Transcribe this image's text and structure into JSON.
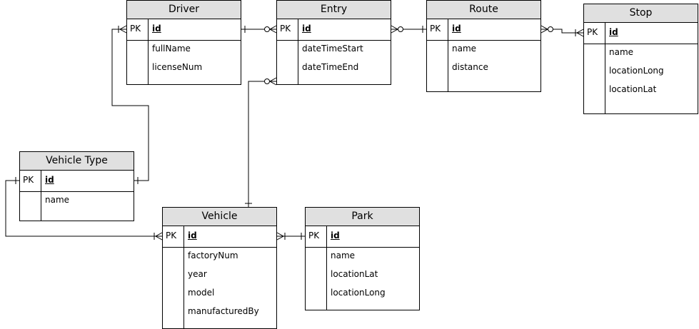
{
  "entities": [
    {
      "name": "Driver",
      "pk_label": "PK",
      "pk": "id",
      "fields": [
        "fullName",
        "licenseNum"
      ]
    },
    {
      "name": "Entry",
      "pk_label": "PK",
      "pk": "id",
      "fields": [
        "dateTimeStart",
        "dateTimeEnd"
      ]
    },
    {
      "name": "Route",
      "pk_label": "PK",
      "pk": "id",
      "fields": [
        "name",
        "distance"
      ]
    },
    {
      "name": "Stop",
      "pk_label": "PK",
      "pk": "id",
      "fields": [
        "name",
        "locationLong",
        "locationLat"
      ]
    },
    {
      "name": "Vehicle Type",
      "pk_label": "PK",
      "pk": "id",
      "fields": [
        "name"
      ]
    },
    {
      "name": "Vehicle",
      "pk_label": "PK",
      "pk": "id",
      "fields": [
        "factoryNum",
        "year",
        "model",
        "manufacturedBy"
      ]
    },
    {
      "name": "Park",
      "pk_label": "PK",
      "pk": "id",
      "fields": [
        "name",
        "locationLat",
        "locationLong"
      ]
    }
  ],
  "relationships": [
    {
      "from": "Driver",
      "to": "Entry",
      "from_end": "one",
      "to_end": "zero-or-many"
    },
    {
      "from": "Entry",
      "to": "Route",
      "from_end": "zero-or-many",
      "to_end": "one"
    },
    {
      "from": "Route",
      "to": "Stop",
      "from_end": "zero-or-many",
      "to_end": "one-or-many"
    },
    {
      "from": "Vehicle Type",
      "to": "Driver",
      "from_end": "one",
      "to_end": "one-or-many"
    },
    {
      "from": "Vehicle Type",
      "to": "Vehicle",
      "from_end": "one",
      "to_end": "one-or-many"
    },
    {
      "from": "Entry",
      "to": "Vehicle",
      "from_end": "zero-or-many",
      "to_end": "one"
    },
    {
      "from": "Vehicle",
      "to": "Park",
      "from_end": "one-or-many",
      "to_end": "one"
    }
  ]
}
